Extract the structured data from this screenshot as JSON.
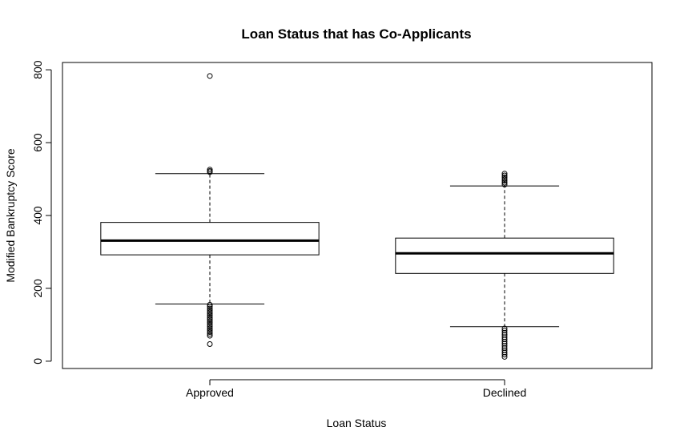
{
  "chart_data": {
    "type": "boxplot",
    "title": "Loan Status that has Co-Applicants",
    "xlabel": "Loan Status",
    "ylabel": "Modified Bankruptcy Score",
    "ylim": [
      -20,
      820
    ],
    "yticks": [
      0,
      200,
      400,
      600,
      800
    ],
    "grid": false,
    "categories": [
      "Approved",
      "Declined"
    ],
    "boxes": [
      {
        "category": "Approved",
        "whisker_low": 157,
        "q1": 292,
        "median": 331,
        "q3": 381,
        "whisker_high": 515,
        "outliers": [
          47,
          70,
          75,
          80,
          85,
          90,
          95,
          100,
          105,
          110,
          115,
          120,
          125,
          130,
          135,
          140,
          145,
          150,
          155,
          519,
          522,
          526,
          783
        ]
      },
      {
        "category": "Declined",
        "whisker_low": 95,
        "q1": 241,
        "median": 296,
        "q3": 338,
        "whisker_high": 481,
        "outliers": [
          12,
          18,
          24,
          30,
          36,
          42,
          48,
          54,
          60,
          66,
          72,
          78,
          84,
          90,
          485,
          490,
          495,
          500,
          505,
          510,
          515
        ]
      }
    ]
  }
}
